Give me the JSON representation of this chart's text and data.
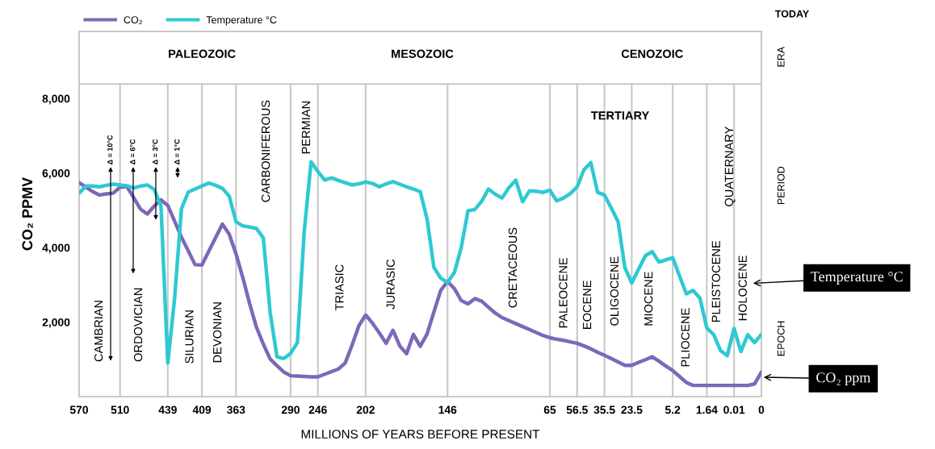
{
  "chart_data": {
    "type": "line",
    "xlabel": "MILLIONS OF YEARS BEFORE PRESENT",
    "ylabel": "CO₂ PPMV",
    "categories": [
      "570",
      null,
      null,
      null,
      null,
      null,
      "510",
      null,
      null,
      null,
      null,
      null,
      null,
      "439",
      null,
      null,
      null,
      null,
      "409",
      null,
      null,
      null,
      null,
      "363",
      null,
      null,
      null,
      null,
      null,
      null,
      null,
      "290",
      null,
      null,
      null,
      "246",
      null,
      null,
      null,
      null,
      null,
      null,
      "202",
      null,
      null,
      null,
      null,
      null,
      null,
      null,
      null,
      null,
      null,
      null,
      "146",
      null,
      null,
      null,
      null,
      null,
      null,
      null,
      null,
      null,
      null,
      null,
      null,
      null,
      null,
      "65",
      null,
      null,
      null,
      "56.5",
      null,
      null,
      null,
      "35.5",
      null,
      null,
      null,
      "23.5",
      null,
      null,
      null,
      null,
      null,
      "5.2",
      null,
      null,
      null,
      null,
      "1.64",
      null,
      null,
      null,
      "0.01",
      null,
      null,
      null,
      "0"
    ],
    "ylim": [
      0,
      9800
    ],
    "yticks": [
      {
        "value": 2000,
        "label": "2,000"
      },
      {
        "value": 4000,
        "label": "4,000"
      },
      {
        "value": 6000,
        "label": "6,000"
      },
      {
        "value": 8000,
        "label": "8,000"
      }
    ],
    "grid": false,
    "legend": "top left",
    "marker": "none",
    "line_style": "solid",
    "series": [
      {
        "name": "CO₂",
        "color": "#7d68b8",
        "values": [
          5740,
          5620,
          5500,
          5410,
          5440,
          5460,
          5620,
          5640,
          5340,
          5030,
          4900,
          5110,
          5280,
          5130,
          4710,
          4280,
          3910,
          3540,
          3530,
          3900,
          4260,
          4630,
          4360,
          3830,
          3190,
          2490,
          1860,
          1410,
          1010,
          830,
          660,
          560,
          550,
          540,
          530,
          530,
          600,
          670,
          740,
          900,
          1380,
          1900,
          2190,
          1970,
          1710,
          1430,
          1780,
          1360,
          1150,
          1670,
          1350,
          1680,
          2270,
          2850,
          3090,
          2900,
          2580,
          2490,
          2630,
          2560,
          2400,
          2240,
          2120,
          2040,
          1960,
          1880,
          1800,
          1720,
          1640,
          1580,
          1540,
          1510,
          1470,
          1430,
          1360,
          1280,
          1190,
          1110,
          1020,
          930,
          840,
          840,
          920,
          990,
          1070,
          950,
          820,
          700,
          540,
          380,
          300,
          300,
          300,
          300,
          300,
          300,
          300,
          300,
          300,
          340,
          660
        ]
      },
      {
        "name": "Temperature °C",
        "color": "#2ec9d2",
        "values": [
          5460,
          5650,
          5650,
          5630,
          5670,
          5700,
          5680,
          5660,
          5600,
          5650,
          5680,
          5560,
          5120,
          900,
          2640,
          5040,
          5490,
          5570,
          5650,
          5730,
          5670,
          5590,
          5380,
          4690,
          4580,
          4550,
          4510,
          4260,
          2260,
          1070,
          1020,
          1160,
          1450,
          4440,
          6300,
          6040,
          5810,
          5870,
          5800,
          5740,
          5680,
          5710,
          5760,
          5720,
          5630,
          5710,
          5770,
          5700,
          5630,
          5570,
          5500,
          4770,
          3470,
          3180,
          3060,
          3330,
          3990,
          4990,
          5020,
          5240,
          5570,
          5430,
          5330,
          5610,
          5810,
          5230,
          5520,
          5510,
          5480,
          5540,
          5250,
          5330,
          5450,
          5630,
          6090,
          6280,
          5480,
          5410,
          5060,
          4700,
          3460,
          3050,
          3420,
          3780,
          3890,
          3610,
          3670,
          3730,
          3240,
          2760,
          2850,
          2640,
          1840,
          1670,
          1240,
          1100,
          1830,
          1210,
          1660,
          1450,
          1670
        ]
      }
    ],
    "ref_lines": [
      {
        "axis": "x",
        "value": "510",
        "color": "#c8c8c8"
      },
      {
        "axis": "x",
        "value": "439",
        "color": "#c8c8c8"
      },
      {
        "axis": "x",
        "value": "409",
        "color": "#c8c8c8"
      },
      {
        "axis": "x",
        "value": "363",
        "color": "#c8c8c8"
      },
      {
        "axis": "x",
        "value": "290",
        "color": "#c8c8c8"
      },
      {
        "axis": "x",
        "value": "246",
        "color": "#c8c8c8"
      },
      {
        "axis": "x",
        "value": "202",
        "color": "#c8c8c8"
      },
      {
        "axis": "x",
        "value": "146",
        "color": "#c8c8c8"
      },
      {
        "axis": "x",
        "value": "65",
        "color": "#c8c8c8"
      },
      {
        "axis": "x",
        "value": "56.5",
        "color": "#c8c8c8"
      },
      {
        "axis": "x",
        "value": "35.5",
        "color": "#c8c8c8"
      },
      {
        "axis": "x",
        "value": "23.5",
        "color": "#c8c8c8"
      },
      {
        "axis": "x",
        "value": "5.2",
        "color": "#c8c8c8"
      },
      {
        "axis": "x",
        "value": "1.64",
        "color": "#c8c8c8"
      },
      {
        "axis": "x",
        "value": "0.01",
        "color": "#c8c8c8"
      },
      {
        "axis": "y",
        "value": 8390,
        "color": "#c8c8c8"
      }
    ],
    "annotations": [
      "PALEOZOIC",
      "MESOZOIC",
      "CENOZOIC",
      "TERTIARY",
      "CAMBRIAN",
      "ORDOVICIAN",
      "SILURIAN",
      "DEVONIAN",
      "CARBONIFEROUS",
      "PERMIAN",
      "TRIASIC",
      "JURASIC",
      "CRETACEOUS",
      "PALEOCENE",
      "EOCENE",
      "OLIGOCENE",
      "MIOCENE",
      "PLIOCENE",
      "PLEISTOCENE",
      "HOLOCENE",
      "QUATERNARY",
      "Δ = 10°C",
      "Δ = 6°C",
      "Δ = 3°C",
      "Δ = 1°C",
      "Temperature °C",
      "CO₂ ppm",
      "TODAY",
      "ERA",
      "PERIOD",
      "EPOCH"
    ]
  }
}
